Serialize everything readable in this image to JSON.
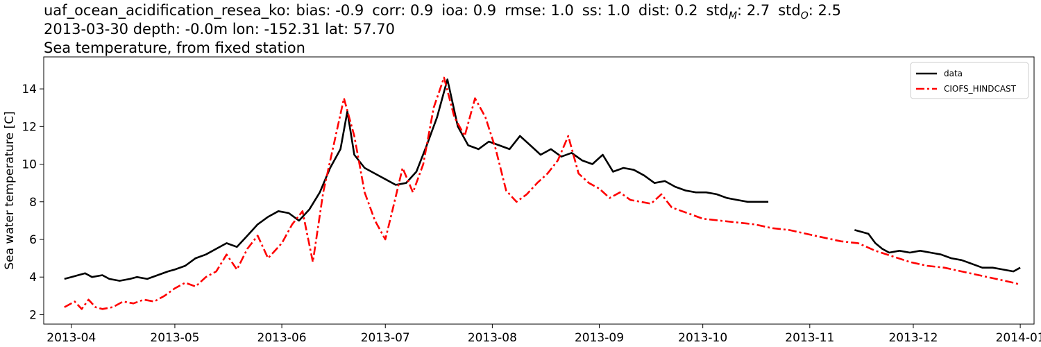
{
  "header": {
    "dataset": "uaf_ocean_acidification_resea_ko:",
    "stats": [
      {
        "name": "bias",
        "sub": "",
        "value": "-0.9"
      },
      {
        "name": "corr",
        "sub": "",
        "value": "0.9"
      },
      {
        "name": "ioa",
        "sub": "",
        "value": "0.9"
      },
      {
        "name": "rmse",
        "sub": "",
        "value": "1.0"
      },
      {
        "name": "ss",
        "sub": "",
        "value": "1.0"
      },
      {
        "name": "dist",
        "sub": "",
        "value": "0.2"
      },
      {
        "name": "std",
        "sub": "M",
        "value": "2.7"
      },
      {
        "name": "std",
        "sub": "O",
        "value": "2.5"
      }
    ],
    "line2": "2013-03-30 depth: -0.0m lon: -152.31 lat: 57.70",
    "line3": "Sea temperature, from fixed station"
  },
  "chart_data": {
    "type": "line",
    "ylabel": "Sea water temperature [C]",
    "xlabel": "",
    "xlim": [
      "2013-03-24",
      "2014-01-05"
    ],
    "ylim": [
      1.5,
      15.7
    ],
    "yticks": [
      2,
      4,
      6,
      8,
      10,
      12,
      14
    ],
    "xticks": [
      "2013-04",
      "2013-05",
      "2013-06",
      "2013-07",
      "2013-08",
      "2013-09",
      "2013-10",
      "2013-11",
      "2013-12",
      "2014-01"
    ],
    "legend_position": "top-right",
    "grid": false,
    "series": [
      {
        "name": "data",
        "color": "#000000",
        "style": "solid",
        "segments": [
          [
            [
              "2013-03-30",
              3.9
            ],
            [
              "2013-04-01",
              4.0
            ],
            [
              "2013-04-03",
              4.1
            ],
            [
              "2013-04-05",
              4.2
            ],
            [
              "2013-04-07",
              4.0
            ],
            [
              "2013-04-10",
              4.1
            ],
            [
              "2013-04-12",
              3.9
            ],
            [
              "2013-04-15",
              3.8
            ],
            [
              "2013-04-18",
              3.9
            ],
            [
              "2013-04-20",
              4.0
            ],
            [
              "2013-04-23",
              3.9
            ],
            [
              "2013-04-26",
              4.1
            ],
            [
              "2013-04-29",
              4.3
            ],
            [
              "2013-05-01",
              4.4
            ],
            [
              "2013-05-04",
              4.6
            ],
            [
              "2013-05-07",
              5.0
            ],
            [
              "2013-05-10",
              5.2
            ],
            [
              "2013-05-13",
              5.5
            ],
            [
              "2013-05-16",
              5.8
            ],
            [
              "2013-05-19",
              5.6
            ],
            [
              "2013-05-22",
              6.2
            ],
            [
              "2013-05-25",
              6.8
            ],
            [
              "2013-05-28",
              7.2
            ],
            [
              "2013-05-31",
              7.5
            ],
            [
              "2013-06-03",
              7.4
            ],
            [
              "2013-06-06",
              7.0
            ],
            [
              "2013-06-09",
              7.6
            ],
            [
              "2013-06-12",
              8.5
            ],
            [
              "2013-06-15",
              9.8
            ],
            [
              "2013-06-18",
              10.8
            ],
            [
              "2013-06-20",
              12.8
            ],
            [
              "2013-06-22",
              10.5
            ],
            [
              "2013-06-25",
              9.8
            ],
            [
              "2013-06-28",
              9.5
            ],
            [
              "2013-07-01",
              9.2
            ],
            [
              "2013-07-04",
              8.9
            ],
            [
              "2013-07-07",
              9.0
            ],
            [
              "2013-07-10",
              9.6
            ],
            [
              "2013-07-13",
              11.0
            ],
            [
              "2013-07-16",
              12.5
            ],
            [
              "2013-07-19",
              14.5
            ],
            [
              "2013-07-22",
              12.0
            ],
            [
              "2013-07-25",
              11.0
            ],
            [
              "2013-07-28",
              10.8
            ],
            [
              "2013-07-31",
              11.2
            ],
            [
              "2013-08-03",
              11.0
            ],
            [
              "2013-08-06",
              10.8
            ],
            [
              "2013-08-09",
              11.5
            ],
            [
              "2013-08-12",
              11.0
            ],
            [
              "2013-08-15",
              10.5
            ],
            [
              "2013-08-18",
              10.8
            ],
            [
              "2013-08-21",
              10.4
            ],
            [
              "2013-08-24",
              10.6
            ],
            [
              "2013-08-27",
              10.2
            ],
            [
              "2013-08-30",
              10.0
            ],
            [
              "2013-09-02",
              10.5
            ],
            [
              "2013-09-05",
              9.6
            ],
            [
              "2013-09-08",
              9.8
            ],
            [
              "2013-09-11",
              9.7
            ],
            [
              "2013-09-14",
              9.4
            ],
            [
              "2013-09-17",
              9.0
            ],
            [
              "2013-09-20",
              9.1
            ],
            [
              "2013-09-23",
              8.8
            ],
            [
              "2013-09-26",
              8.6
            ],
            [
              "2013-09-29",
              8.5
            ],
            [
              "2013-10-02",
              8.5
            ],
            [
              "2013-10-05",
              8.4
            ],
            [
              "2013-10-08",
              8.2
            ],
            [
              "2013-10-11",
              8.1
            ],
            [
              "2013-10-14",
              8.0
            ],
            [
              "2013-10-17",
              8.0
            ],
            [
              "2013-10-20",
              8.0
            ]
          ],
          [
            [
              "2013-11-14",
              6.5
            ],
            [
              "2013-11-16",
              6.4
            ],
            [
              "2013-11-18",
              6.3
            ],
            [
              "2013-11-20",
              5.8
            ],
            [
              "2013-11-22",
              5.5
            ],
            [
              "2013-11-24",
              5.3
            ],
            [
              "2013-11-27",
              5.4
            ],
            [
              "2013-11-30",
              5.3
            ],
            [
              "2013-12-03",
              5.4
            ],
            [
              "2013-12-06",
              5.3
            ],
            [
              "2013-12-09",
              5.2
            ],
            [
              "2013-12-12",
              5.0
            ],
            [
              "2013-12-15",
              4.9
            ],
            [
              "2013-12-18",
              4.7
            ],
            [
              "2013-12-21",
              4.5
            ],
            [
              "2013-12-24",
              4.5
            ],
            [
              "2013-12-27",
              4.4
            ],
            [
              "2013-12-30",
              4.3
            ],
            [
              "2014-01-01",
              4.5
            ]
          ]
        ]
      },
      {
        "name": "CIOFS_HINDCAST",
        "color": "#ff0000",
        "style": "dashdot",
        "segments": [
          [
            [
              "2013-03-30",
              2.4
            ],
            [
              "2013-04-02",
              2.7
            ],
            [
              "2013-04-04",
              2.3
            ],
            [
              "2013-04-06",
              2.8
            ],
            [
              "2013-04-08",
              2.4
            ],
            [
              "2013-04-10",
              2.3
            ],
            [
              "2013-04-13",
              2.4
            ],
            [
              "2013-04-16",
              2.7
            ],
            [
              "2013-04-19",
              2.6
            ],
            [
              "2013-04-22",
              2.8
            ],
            [
              "2013-04-25",
              2.7
            ],
            [
              "2013-04-28",
              3.0
            ],
            [
              "2013-05-01",
              3.4
            ],
            [
              "2013-05-04",
              3.7
            ],
            [
              "2013-05-07",
              3.5
            ],
            [
              "2013-05-10",
              4.0
            ],
            [
              "2013-05-13",
              4.3
            ],
            [
              "2013-05-16",
              5.2
            ],
            [
              "2013-05-19",
              4.4
            ],
            [
              "2013-05-22",
              5.5
            ],
            [
              "2013-05-25",
              6.2
            ],
            [
              "2013-05-28",
              5.0
            ],
            [
              "2013-06-01",
              5.8
            ],
            [
              "2013-06-04",
              6.8
            ],
            [
              "2013-06-07",
              7.5
            ],
            [
              "2013-06-10",
              4.8
            ],
            [
              "2013-06-13",
              8.5
            ],
            [
              "2013-06-16",
              11.0
            ],
            [
              "2013-06-19",
              13.5
            ],
            [
              "2013-06-22",
              11.5
            ],
            [
              "2013-06-25",
              8.5
            ],
            [
              "2013-06-28",
              7.0
            ],
            [
              "2013-07-01",
              6.0
            ],
            [
              "2013-07-03",
              7.5
            ],
            [
              "2013-07-06",
              9.8
            ],
            [
              "2013-07-09",
              8.5
            ],
            [
              "2013-07-12",
              10.0
            ],
            [
              "2013-07-15",
              13.0
            ],
            [
              "2013-07-18",
              14.6
            ],
            [
              "2013-07-21",
              12.5
            ],
            [
              "2013-07-24",
              11.5
            ],
            [
              "2013-07-27",
              13.5
            ],
            [
              "2013-07-30",
              12.5
            ],
            [
              "2013-08-02",
              10.8
            ],
            [
              "2013-08-05",
              8.6
            ],
            [
              "2013-08-08",
              8.0
            ],
            [
              "2013-08-11",
              8.4
            ],
            [
              "2013-08-14",
              9.0
            ],
            [
              "2013-08-17",
              9.5
            ],
            [
              "2013-08-20",
              10.2
            ],
            [
              "2013-08-23",
              11.5
            ],
            [
              "2013-08-26",
              9.5
            ],
            [
              "2013-08-29",
              9.0
            ],
            [
              "2013-09-01",
              8.7
            ],
            [
              "2013-09-04",
              8.2
            ],
            [
              "2013-09-07",
              8.5
            ],
            [
              "2013-09-10",
              8.1
            ],
            [
              "2013-09-13",
              8.0
            ],
            [
              "2013-09-16",
              7.9
            ],
            [
              "2013-09-19",
              8.4
            ],
            [
              "2013-09-22",
              7.7
            ],
            [
              "2013-09-25",
              7.5
            ],
            [
              "2013-09-28",
              7.3
            ],
            [
              "2013-10-01",
              7.1
            ],
            [
              "2013-10-06",
              7.0
            ],
            [
              "2013-10-11",
              6.9
            ],
            [
              "2013-10-16",
              6.8
            ],
            [
              "2013-10-21",
              6.6
            ],
            [
              "2013-10-26",
              6.5
            ],
            [
              "2013-10-31",
              6.3
            ],
            [
              "2013-11-05",
              6.1
            ],
            [
              "2013-11-10",
              5.9
            ],
            [
              "2013-11-15",
              5.8
            ],
            [
              "2013-11-20",
              5.4
            ],
            [
              "2013-11-25",
              5.1
            ],
            [
              "2013-11-30",
              4.8
            ],
            [
              "2013-12-05",
              4.6
            ],
            [
              "2013-12-10",
              4.5
            ],
            [
              "2013-12-15",
              4.3
            ],
            [
              "2013-12-20",
              4.1
            ],
            [
              "2013-12-25",
              3.9
            ],
            [
              "2013-12-30",
              3.7
            ],
            [
              "2014-01-01",
              3.6
            ]
          ]
        ]
      }
    ]
  }
}
